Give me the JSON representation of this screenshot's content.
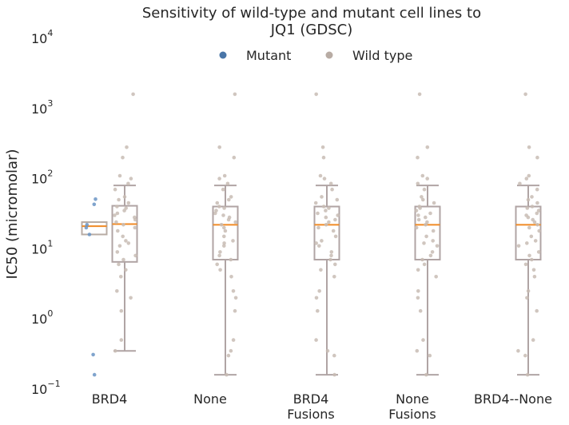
{
  "chart_data": {
    "type": "box",
    "title_lines": [
      "Sensitivity of wild-type and mutant cell lines to",
      "JQ1 (GDSC)"
    ],
    "ylabel": "IC50 (micromolar)",
    "y_scale": "log",
    "ylim": [
      0.1,
      10000
    ],
    "y_ticks": [
      {
        "value": 0.1,
        "base": "10",
        "exp": "−1"
      },
      {
        "value": 1,
        "base": "10",
        "exp": "0"
      },
      {
        "value": 10,
        "base": "10",
        "exp": "1"
      },
      {
        "value": 100,
        "base": "10",
        "exp": "2"
      },
      {
        "value": 1000,
        "base": "10",
        "exp": "3"
      },
      {
        "value": 10000,
        "base": "10",
        "exp": "4"
      }
    ],
    "categories": [
      {
        "lines": [
          "BRD4"
        ]
      },
      {
        "lines": [
          "None"
        ]
      },
      {
        "lines": [
          "BRD4",
          "Fusions"
        ]
      },
      {
        "lines": [
          "None",
          "Fusions"
        ]
      },
      {
        "lines": [
          "BRD4--None"
        ]
      }
    ],
    "legend": [
      {
        "label": "Mutant",
        "color": "#4a76a8"
      },
      {
        "label": "Wild type",
        "color": "#b8aca4"
      }
    ],
    "colors": {
      "mutant_box": "#b8aca4",
      "wildtype_box": "#b0a4a4",
      "median": "#f08a24",
      "mutant_points": "#6a94c4",
      "wildtype_points": "#c8bcb4"
    },
    "series": [
      {
        "name": "Mutant",
        "category": 0,
        "box": {
          "whislo": 16,
          "q1": 16,
          "med": 21,
          "q3": 24,
          "whishi": 24
        },
        "points": [
          43,
          51,
          22,
          16,
          0.31,
          0.16,
          20
        ]
      },
      {
        "name": "Wild type",
        "category": 0,
        "box": {
          "whislo": 0.35,
          "q1": 6.5,
          "med": 22.5,
          "q3": 41,
          "whishi": 80
        },
        "points": [
          1600,
          280,
          200,
          110,
          100,
          85,
          70,
          55,
          50,
          45,
          40,
          38,
          35,
          32,
          30,
          28,
          26,
          24,
          22,
          20,
          18,
          15,
          13,
          12,
          11,
          9,
          8,
          7,
          6,
          5,
          4,
          2.5,
          2,
          1.3,
          0.5,
          0.35
        ]
      },
      {
        "name": "Wild type",
        "category": 1,
        "box": {
          "whislo": 0.16,
          "q1": 7,
          "med": 22,
          "q3": 40,
          "whishi": 80
        },
        "points": [
          1600,
          280,
          200,
          110,
          100,
          85,
          70,
          55,
          50,
          45,
          40,
          38,
          35,
          32,
          30,
          28,
          26,
          24,
          22,
          20,
          18,
          15,
          13,
          12,
          11,
          9,
          8,
          7,
          6,
          5,
          4,
          2.5,
          2,
          1.3,
          0.5,
          0.35,
          0.3,
          0.16
        ]
      },
      {
        "name": "Wild type",
        "category": 2,
        "box": {
          "whislo": 0.16,
          "q1": 7,
          "med": 22,
          "q3": 40,
          "whishi": 80
        },
        "points": [
          1600,
          280,
          200,
          110,
          100,
          85,
          70,
          55,
          50,
          45,
          40,
          38,
          35,
          32,
          30,
          28,
          26,
          24,
          22,
          20,
          18,
          15,
          13,
          12,
          11,
          9,
          8,
          7,
          6,
          5,
          4,
          2.5,
          2,
          1.3,
          0.5,
          0.35,
          0.3,
          0.16
        ]
      },
      {
        "name": "Wild type",
        "category": 3,
        "box": {
          "whislo": 0.16,
          "q1": 7,
          "med": 22,
          "q3": 40,
          "whishi": 80
        },
        "points": [
          1600,
          280,
          200,
          110,
          100,
          85,
          70,
          55,
          50,
          45,
          40,
          38,
          35,
          32,
          30,
          28,
          26,
          24,
          22,
          20,
          18,
          15,
          13,
          12,
          11,
          9,
          8,
          7,
          6,
          5,
          4,
          2.5,
          2,
          1.3,
          0.5,
          0.35,
          0.3,
          0.16
        ]
      },
      {
        "name": "Wild type",
        "category": 4,
        "box": {
          "whislo": 0.16,
          "q1": 7,
          "med": 22,
          "q3": 40,
          "whishi": 80
        },
        "points": [
          1600,
          280,
          200,
          110,
          100,
          85,
          70,
          55,
          50,
          45,
          40,
          38,
          35,
          32,
          30,
          28,
          26,
          24,
          22,
          20,
          18,
          15,
          13,
          12,
          11,
          9,
          8,
          7,
          6,
          5,
          4,
          2.5,
          2,
          1.3,
          0.5,
          0.35,
          0.3,
          0.16
        ]
      }
    ]
  }
}
